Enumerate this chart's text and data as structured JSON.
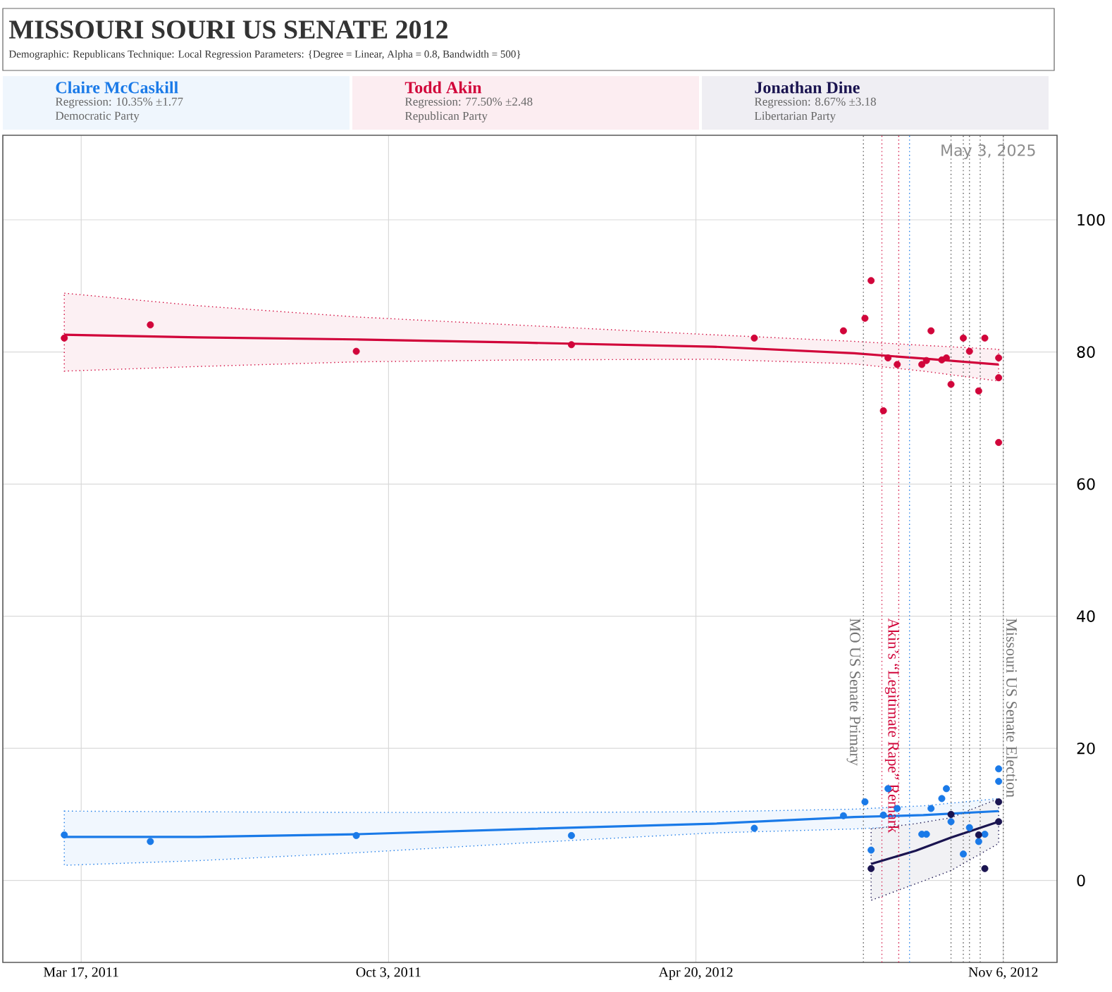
{
  "chart_data": {
    "type": "scatter",
    "title": "MISSOURI SOURI US SENATE 2012",
    "subtitle": "Demographic: Republicans     Technique: Local Regression     Parameters: {Degree = Linear, Alpha = 0.8, Bandwidth = 500}",
    "xlim": [
      "2011-01-25",
      "2012-12-11"
    ],
    "xticks": [
      {
        "value": "2011-03-17",
        "label": "Mar 17, 2011"
      },
      {
        "value": "2011-10-03",
        "label": "Oct 3, 2011"
      },
      {
        "value": "2012-04-20",
        "label": "Apr 20, 2012"
      },
      {
        "value": "2012-11-06",
        "label": "Nov 6, 2012"
      }
    ],
    "ylim": [
      -12.4,
      112.8
    ],
    "yticks": [
      0,
      20,
      40,
      60,
      80,
      100
    ],
    "grid": true,
    "legend": "top",
    "series": [
      {
        "name": "Claire McCaskill",
        "type": "scatter",
        "marker": "circle",
        "color": "#1a7ae8",
        "x": [
          "2011-03-06",
          "2011-05-01",
          "2011-09-12",
          "2012-01-30",
          "2012-05-28",
          "2012-07-25",
          "2012-08-08",
          "2012-08-12",
          "2012-08-20",
          "2012-08-23",
          "2012-08-29",
          "2012-09-14",
          "2012-09-17",
          "2012-09-20",
          "2012-09-27",
          "2012-09-30",
          "2012-10-03",
          "2012-10-11",
          "2012-10-15",
          "2012-10-21",
          "2012-10-25",
          "2012-11-03",
          "2012-11-03"
        ],
        "values": [
          6.9,
          5.9,
          6.8,
          6.8,
          7.9,
          9.8,
          11.9,
          4.6,
          9.9,
          13.9,
          10.9,
          7.0,
          7.0,
          10.9,
          12.4,
          13.9,
          8.9,
          4.0,
          8.0,
          5.9,
          7.0,
          15.0,
          16.9
        ]
      },
      {
        "name": "Todd Akin",
        "type": "scatter",
        "marker": "circle",
        "color": "#d1053a",
        "x": [
          "2011-03-06",
          "2011-05-01",
          "2011-09-12",
          "2012-01-30",
          "2012-05-28",
          "2012-07-25",
          "2012-08-08",
          "2012-08-12",
          "2012-08-20",
          "2012-08-23",
          "2012-08-29",
          "2012-09-14",
          "2012-09-17",
          "2012-09-20",
          "2012-09-27",
          "2012-09-30",
          "2012-10-03",
          "2012-10-11",
          "2012-10-15",
          "2012-10-21",
          "2012-10-25",
          "2012-11-03",
          "2012-11-03",
          "2012-11-03"
        ],
        "values": [
          82.1,
          84.1,
          80.1,
          81.1,
          82.1,
          83.2,
          85.1,
          90.8,
          71.1,
          79.1,
          78.1,
          78.1,
          78.7,
          83.2,
          78.8,
          79.1,
          75.1,
          82.1,
          80.1,
          74.1,
          82.1,
          79.1,
          76.1,
          66.3
        ]
      },
      {
        "name": "Jonathan Dine",
        "type": "scatter",
        "marker": "circle",
        "color": "#1a1450",
        "x": [
          "2012-08-12",
          "2012-10-03",
          "2012-10-21",
          "2012-10-25",
          "2012-11-03",
          "2012-11-03"
        ],
        "values": [
          1.8,
          10.0,
          6.9,
          1.8,
          11.9,
          8.9
        ]
      },
      {
        "type": "line",
        "marker": "none",
        "color": "#1a7ae8",
        "x": [
          "2011-03-06",
          "2011-06-01",
          "2011-09-12",
          "2012-01-01",
          "2012-05-01",
          "2012-08-01",
          "2012-09-15",
          "2012-11-03"
        ],
        "values": [
          6.6,
          6.6,
          7.0,
          7.8,
          8.6,
          9.6,
          9.9,
          10.5
        ],
        "lower": [
          2.3,
          3.0,
          4.2,
          5.7,
          7.2,
          7.8,
          8.3,
          8.7
        ],
        "upper": [
          10.5,
          10.4,
          10.3,
          10.3,
          10.4,
          10.8,
          11.3,
          12.4
        ]
      },
      {
        "type": "line",
        "marker": "none",
        "color": "#d1053a",
        "x": [
          "2011-03-06",
          "2011-06-01",
          "2011-09-12",
          "2012-01-01",
          "2012-05-01",
          "2012-08-01",
          "2012-09-15",
          "2012-11-03"
        ],
        "values": [
          82.6,
          82.2,
          81.9,
          81.4,
          80.8,
          79.8,
          79.0,
          78.1
        ],
        "lower": [
          77.1,
          77.8,
          78.5,
          78.8,
          78.9,
          78.2,
          77.1,
          75.6
        ],
        "upper": [
          88.9,
          87.0,
          85.3,
          84.0,
          82.6,
          81.6,
          81.0,
          80.4
        ]
      },
      {
        "type": "line",
        "marker": "none",
        "color": "#1a1450",
        "x": [
          "2012-08-12",
          "2012-09-10",
          "2012-10-03",
          "2012-11-03"
        ],
        "values": [
          2.5,
          4.5,
          6.5,
          8.9
        ],
        "lower": [
          -3.0,
          -0.5,
          1.5,
          5.6
        ],
        "upper": [
          7.8,
          8.6,
          9.5,
          12.4
        ]
      }
    ],
    "ref_lines": [
      {
        "axis": "x",
        "value": "2012-08-07",
        "label": "MO US Senate Primary",
        "color": "#555555",
        "line_style": "dotted"
      },
      {
        "axis": "x",
        "value": "2012-08-19",
        "label": "Akin’s “Legitimate Rape” Remark",
        "color": "#d1053a",
        "line_style": "dotted"
      },
      {
        "axis": "x",
        "value": "2012-08-30",
        "color": "#d1053a",
        "line_style": "dotted"
      },
      {
        "axis": "x",
        "value": "2012-09-06",
        "color": "#1a7ae8",
        "line_style": "dotted"
      },
      {
        "axis": "x",
        "value": "2012-10-03",
        "color": "#555555",
        "line_style": "dotted"
      },
      {
        "axis": "x",
        "value": "2012-10-11",
        "color": "#555555",
        "line_style": "dotted"
      },
      {
        "axis": "x",
        "value": "2012-10-15",
        "color": "#555555",
        "line_style": "dotted"
      },
      {
        "axis": "x",
        "value": "2012-10-22",
        "color": "#555555",
        "line_style": "dotted"
      },
      {
        "axis": "x",
        "value": "2012-11-06",
        "label": "Missouri US Senate Election",
        "color": "#555555",
        "line_style": "dotted"
      }
    ],
    "annotations": [
      "Regression: 10.35% ±1.77",
      "Democratic Party",
      "Regression: 77.50% ±2.48",
      "Republican Party",
      "Regression: 8.67% ±3.18",
      "Libertarian Party",
      "May 3, 2025"
    ]
  }
}
